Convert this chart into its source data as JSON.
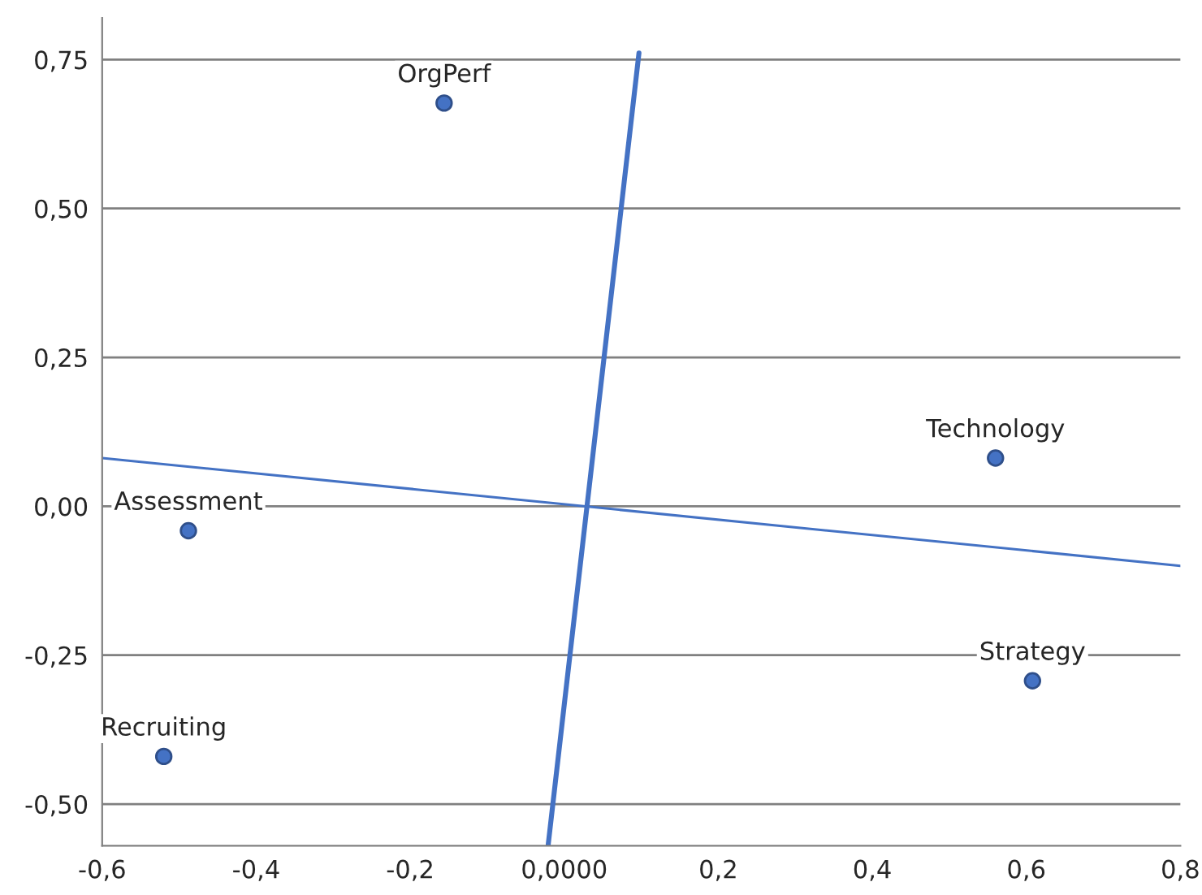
{
  "chart_data": {
    "type": "scatter",
    "xlim": [
      -0.6,
      0.8
    ],
    "ylim": [
      -0.57,
      0.82
    ],
    "xticks": [
      {
        "value": -0.6,
        "label": "-0,6"
      },
      {
        "value": -0.4,
        "label": "-0,4"
      },
      {
        "value": -0.2,
        "label": "-0,2"
      },
      {
        "value": 0,
        "label": "0,0000"
      },
      {
        "value": 0.2,
        "label": "0,2"
      },
      {
        "value": 0.4,
        "label": "0,4"
      },
      {
        "value": 0.6,
        "label": "0,6"
      },
      {
        "value": 0.8,
        "label": "0,8"
      }
    ],
    "yticks": [
      {
        "value": -0.5,
        "label": "-0,50"
      },
      {
        "value": -0.25,
        "label": "-0,25"
      },
      {
        "value": 0,
        "label": "0,00"
      },
      {
        "value": 0.25,
        "label": "0,25"
      },
      {
        "value": 0.5,
        "label": "0,50"
      },
      {
        "value": 0.75,
        "label": "0,75"
      }
    ],
    "grid": "y",
    "series": [
      {
        "marker": "circle",
        "color": "#4472c4",
        "x": [
          -0.156,
          0.56,
          -0.488,
          -0.52,
          0.608
        ],
        "values": [
          0.677,
          0.081,
          -0.041,
          -0.42,
          -0.293
        ]
      },
      {
        "type": "line",
        "color": "#4472c4",
        "x": [
          -0.021,
          0.097
        ],
        "values": [
          -0.57,
          0.761
        ]
      },
      {
        "type": "line",
        "color": "#4472c4",
        "x": [
          -0.6,
          0.8
        ],
        "values": [
          0.081,
          -0.1
        ]
      }
    ],
    "annotations": [
      {
        "text": "OrgPerf",
        "x": -0.156,
        "y": 0.677
      },
      {
        "text": "Technology",
        "x": 0.56,
        "y": 0.081
      },
      {
        "text": "Assessment",
        "x": -0.488,
        "y": -0.041
      },
      {
        "text": "Recruiting",
        "x": -0.52,
        "y": -0.42
      },
      {
        "text": "Strategy",
        "x": 0.608,
        "y": -0.293
      }
    ]
  }
}
